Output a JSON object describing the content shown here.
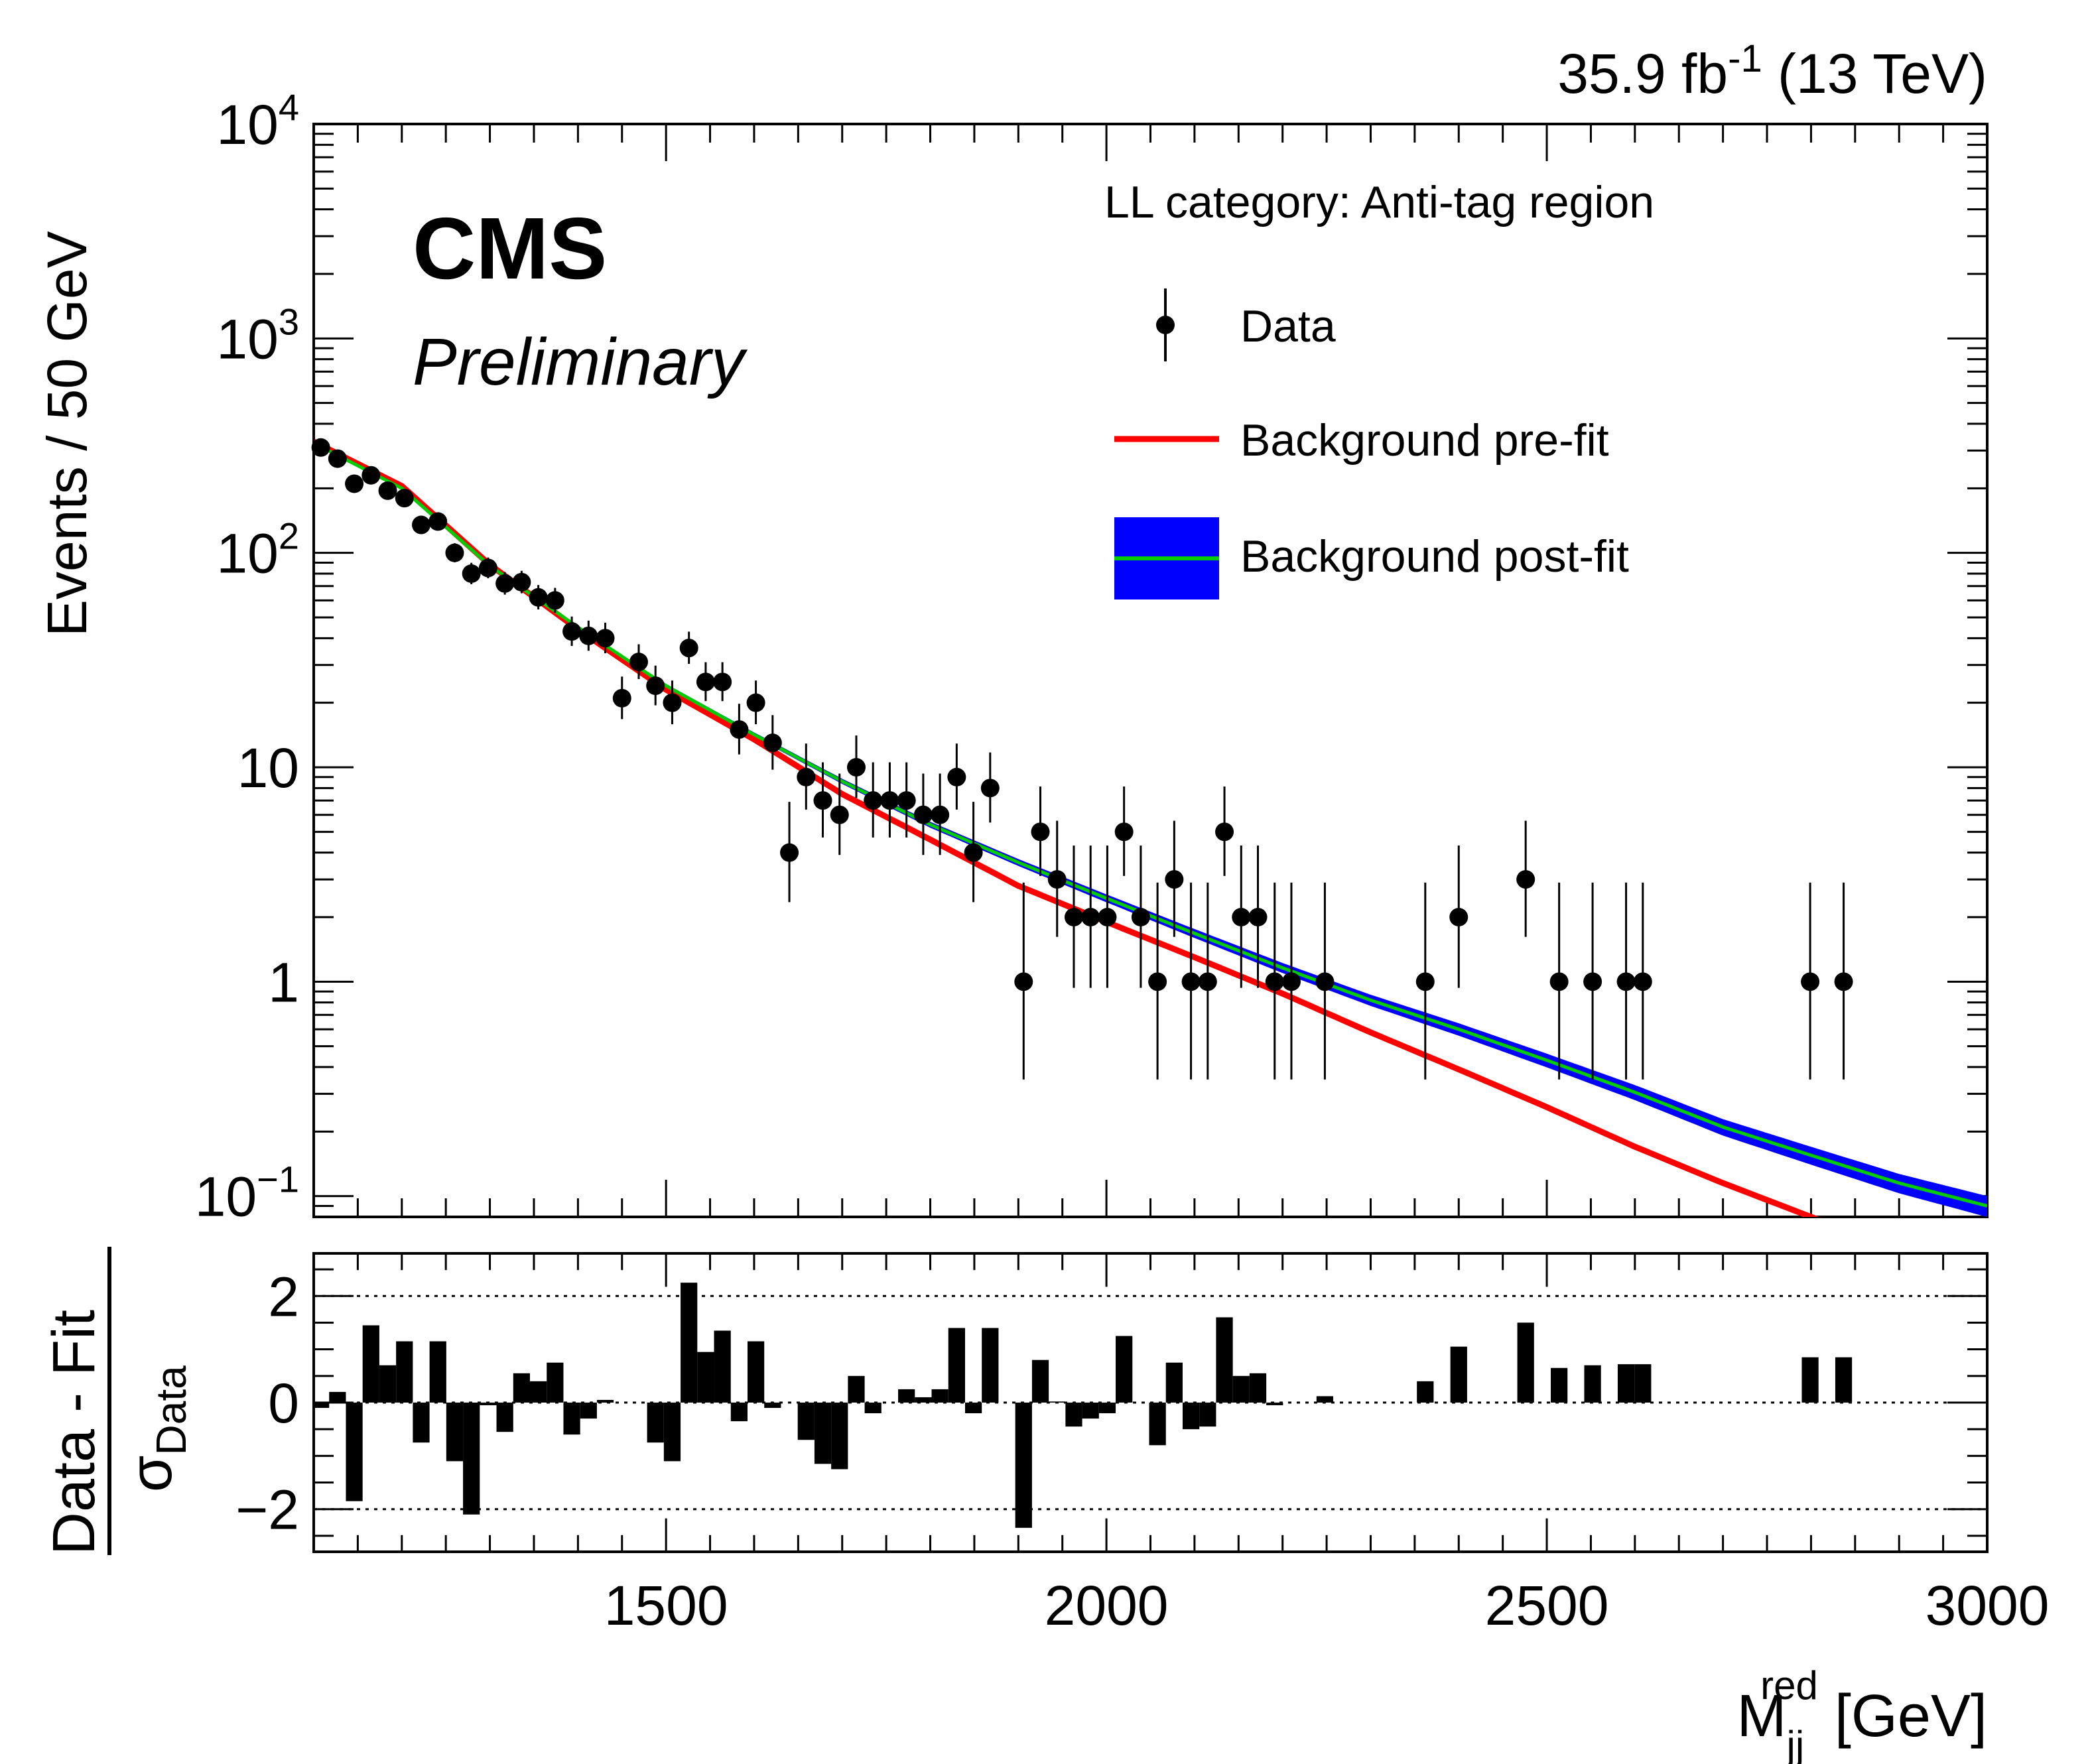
{
  "header": {
    "lumi": "35.9 fb",
    "lumi_exp": "-1",
    "energy": "(13 TeV)",
    "experiment": "CMS",
    "status": "Preliminary"
  },
  "colors": {
    "data": "#000000",
    "prefit": "#ff0000",
    "postfit_line": "#00cc00",
    "postfit_band": "#0000ff",
    "residual_bar": "#000000"
  },
  "legend": {
    "title": "LL category: Anti-tag region",
    "entries": [
      "Data",
      "Background pre-fit",
      "Background post-fit"
    ]
  },
  "chart_data": [
    {
      "type": "scatter",
      "panel": "main",
      "title": "LL category: Anti-tag region",
      "xlabel_main": "M",
      "xlabel_sub": "jj",
      "xlabel_sup": "red",
      "xlabel_unit": "[GeV]",
      "ylabel": "Events / 50 GeV",
      "yscale": "log",
      "xlim": [
        1100,
        3000
      ],
      "ylim": [
        0.08,
        10000
      ],
      "x_ticks": [
        {
          "v": 1500,
          "label": "1500"
        },
        {
          "v": 2000,
          "label": "2000"
        },
        {
          "v": 2500,
          "label": "2500"
        },
        {
          "v": 3000,
          "label": "3000"
        }
      ],
      "y_ticks": [
        {
          "v": 0.1,
          "base": "10",
          "exp": "−1"
        },
        {
          "v": 1,
          "base": "1",
          "exp": ""
        },
        {
          "v": 10,
          "base": "10",
          "exp": ""
        },
        {
          "v": 100,
          "base": "10",
          "exp": "2"
        },
        {
          "v": 1000,
          "base": "10",
          "exp": "3"
        },
        {
          "v": 10000,
          "base": "10",
          "exp": "4"
        }
      ],
      "series": [
        {
          "name": "Data",
          "points": [
            [
              1108,
              310
            ],
            [
              1127,
              275
            ],
            [
              1146,
              210
            ],
            [
              1165,
              230
            ],
            [
              1184,
              195
            ],
            [
              1203,
              180
            ],
            [
              1222,
              135
            ],
            [
              1241,
              140
            ],
            [
              1260,
              100
            ],
            [
              1279,
              80
            ],
            [
              1298,
              85
            ],
            [
              1317,
              72
            ],
            [
              1336,
              73
            ],
            [
              1355,
              62
            ],
            [
              1374,
              60
            ],
            [
              1393,
              43
            ],
            [
              1412,
              41
            ],
            [
              1431,
              40
            ],
            [
              1450,
              21
            ],
            [
              1469,
              31
            ],
            [
              1488,
              24
            ],
            [
              1507,
              20
            ],
            [
              1526,
              36
            ],
            [
              1545,
              25
            ],
            [
              1564,
              25
            ],
            [
              1583,
              15
            ],
            [
              1602,
              20
            ],
            [
              1621,
              13
            ],
            [
              1640,
              4
            ],
            [
              1659,
              9
            ],
            [
              1678,
              7
            ],
            [
              1697,
              6
            ],
            [
              1716,
              10
            ],
            [
              1735,
              7
            ],
            [
              1754,
              7
            ],
            [
              1773,
              7
            ],
            [
              1792,
              6
            ],
            [
              1811,
              6
            ],
            [
              1830,
              9
            ],
            [
              1849,
              4
            ],
            [
              1868,
              8
            ],
            [
              1906,
              1
            ],
            [
              1925,
              5
            ],
            [
              1944,
              3
            ],
            [
              1963,
              2
            ],
            [
              1982,
              2
            ],
            [
              2001,
              2
            ],
            [
              2020,
              5
            ],
            [
              2039,
              2
            ],
            [
              2058,
              1
            ],
            [
              2077,
              3
            ],
            [
              2096,
              1
            ],
            [
              2115,
              1
            ],
            [
              2134,
              5
            ],
            [
              2153,
              2
            ],
            [
              2172,
              2
            ],
            [
              2191,
              1
            ],
            [
              2210,
              1
            ],
            [
              2248,
              1
            ],
            [
              2362,
              1
            ],
            [
              2400,
              2
            ],
            [
              2476,
              3
            ],
            [
              2514,
              1
            ],
            [
              2552,
              1
            ],
            [
              2590,
              1
            ],
            [
              2609,
              1
            ],
            [
              2799,
              1
            ],
            [
              2837,
              1
            ]
          ]
        },
        {
          "name": "Background pre-fit",
          "points": [
            [
              1100,
              330
            ],
            [
              1200,
              205
            ],
            [
              1300,
              88
            ],
            [
              1400,
              44
            ],
            [
              1500,
              23
            ],
            [
              1600,
              13.5
            ],
            [
              1700,
              7.5
            ],
            [
              1800,
              4.6
            ],
            [
              1900,
              2.8
            ],
            [
              2000,
              1.9
            ],
            [
              2100,
              1.3
            ],
            [
              2200,
              0.88
            ],
            [
              2300,
              0.58
            ],
            [
              2400,
              0.39
            ],
            [
              2500,
              0.26
            ],
            [
              2600,
              0.17
            ],
            [
              2700,
              0.115
            ],
            [
              2800,
              0.08
            ]
          ]
        },
        {
          "name": "Background post-fit",
          "points": [
            [
              1100,
              325
            ],
            [
              1200,
              200
            ],
            [
              1300,
              87
            ],
            [
              1400,
              45
            ],
            [
              1500,
              24
            ],
            [
              1600,
              14.2
            ],
            [
              1700,
              8.6
            ],
            [
              1800,
              5.4
            ],
            [
              1900,
              3.6
            ],
            [
              2000,
              2.45
            ],
            [
              2100,
              1.68
            ],
            [
              2200,
              1.16
            ],
            [
              2300,
              0.82
            ],
            [
              2400,
              0.6
            ],
            [
              2500,
              0.43
            ],
            [
              2600,
              0.305
            ],
            [
              2700,
              0.21
            ],
            [
              2800,
              0.155
            ],
            [
              2900,
              0.115
            ],
            [
              3000,
              0.09
            ]
          ]
        }
      ]
    },
    {
      "type": "bar",
      "panel": "ratio",
      "ylabel_num": "Data - Fit",
      "ylabel_den": "σ",
      "ylabel_den_sub": "Data",
      "xlim": [
        1100,
        3000
      ],
      "ylim": [
        -2.8,
        2.8
      ],
      "x_ticks": [
        {
          "v": 1500,
          "label": "1500"
        },
        {
          "v": 2000,
          "label": "2000"
        },
        {
          "v": 2500,
          "label": "2500"
        },
        {
          "v": 3000,
          "label": "3000"
        }
      ],
      "y_ticks": [
        {
          "v": 2,
          "label": "2"
        },
        {
          "v": 0,
          "label": "0"
        },
        {
          "v": -2,
          "label": "−2"
        }
      ],
      "reference_lines": [
        2,
        -2
      ],
      "bin_width": 19,
      "series": [
        {
          "name": "(Data - Fit) / sigma",
          "bins": [
            [
              1108,
              -0.1
            ],
            [
              1127,
              0.2
            ],
            [
              1146,
              -1.85
            ],
            [
              1165,
              1.45
            ],
            [
              1184,
              0.7
            ],
            [
              1203,
              1.15
            ],
            [
              1222,
              -0.75
            ],
            [
              1241,
              1.15
            ],
            [
              1260,
              -1.1
            ],
            [
              1279,
              -2.1
            ],
            [
              1298,
              -0.05
            ],
            [
              1317,
              -0.55
            ],
            [
              1336,
              0.55
            ],
            [
              1355,
              0.4
            ],
            [
              1374,
              0.75
            ],
            [
              1393,
              -0.6
            ],
            [
              1412,
              -0.3
            ],
            [
              1431,
              0.05
            ],
            [
              1488,
              -0.75
            ],
            [
              1507,
              -1.1
            ],
            [
              1526,
              2.25
            ],
            [
              1545,
              0.95
            ],
            [
              1564,
              1.35
            ],
            [
              1583,
              -0.35
            ],
            [
              1602,
              1.15
            ],
            [
              1621,
              -0.1
            ],
            [
              1659,
              -0.7
            ],
            [
              1678,
              -1.15
            ],
            [
              1697,
              -1.25
            ],
            [
              1716,
              0.5
            ],
            [
              1735,
              -0.2
            ],
            [
              1773,
              0.25
            ],
            [
              1792,
              0.1
            ],
            [
              1811,
              0.25
            ],
            [
              1830,
              1.4
            ],
            [
              1849,
              -0.2
            ],
            [
              1868,
              1.4
            ],
            [
              1906,
              -2.35
            ],
            [
              1925,
              0.8
            ],
            [
              1944,
              0.02
            ],
            [
              1963,
              -0.45
            ],
            [
              1982,
              -0.3
            ],
            [
              2001,
              -0.2
            ],
            [
              2020,
              1.25
            ],
            [
              2058,
              -0.8
            ],
            [
              2077,
              0.75
            ],
            [
              2096,
              -0.5
            ],
            [
              2115,
              -0.45
            ],
            [
              2134,
              1.6
            ],
            [
              2153,
              0.5
            ],
            [
              2172,
              0.55
            ],
            [
              2191,
              -0.05
            ],
            [
              2248,
              0.12
            ],
            [
              2362,
              0.4
            ],
            [
              2400,
              1.05
            ],
            [
              2476,
              1.5
            ],
            [
              2514,
              0.65
            ],
            [
              2552,
              0.7
            ],
            [
              2590,
              0.72
            ],
            [
              2609,
              0.72
            ],
            [
              2799,
              0.85
            ],
            [
              2837,
              0.85
            ]
          ]
        }
      ]
    }
  ]
}
